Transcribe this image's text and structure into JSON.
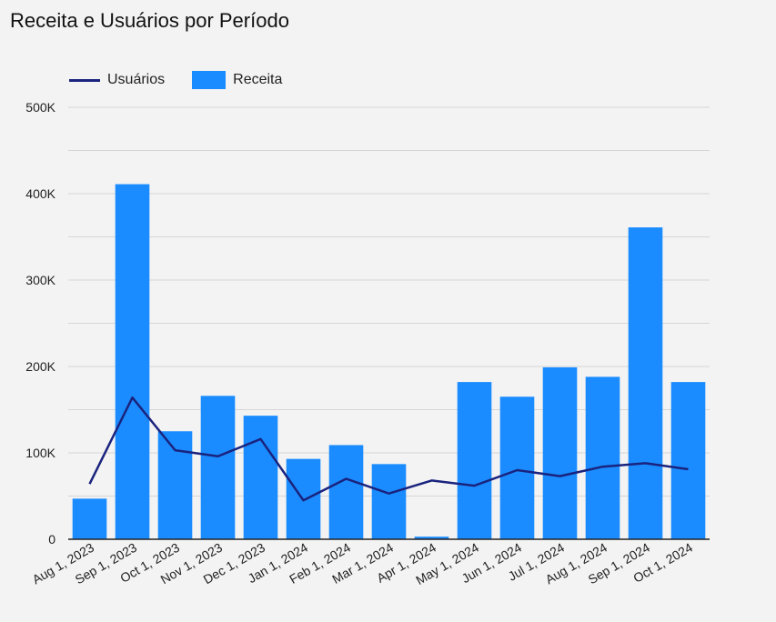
{
  "chart_data": {
    "type": "bar",
    "title": "Receita e Usuários por Período",
    "legend_position": "top-left",
    "grid": true,
    "ylim": [
      0,
      500000
    ],
    "y_ticks": [
      {
        "value": 0,
        "label": "0"
      },
      {
        "value": 100000,
        "label": "100K"
      },
      {
        "value": 200000,
        "label": "200K"
      },
      {
        "value": 300000,
        "label": "300K"
      },
      {
        "value": 400000,
        "label": "400K"
      },
      {
        "value": 500000,
        "label": "500K"
      }
    ],
    "categories": [
      "Aug 1, 2023",
      "Sep 1, 2023",
      "Oct 1, 2023",
      "Nov 1, 2023",
      "Dec 1, 2023",
      "Jan 1, 2024",
      "Feb 1, 2024",
      "Mar 1, 2024",
      "Apr 1, 2024",
      "May 1, 2024",
      "Jun 1, 2024",
      "Jul 1, 2024",
      "Aug 1, 2024",
      "Sep 1, 2024",
      "Oct 1, 2024"
    ],
    "series": [
      {
        "name": "Usuários",
        "kind": "line",
        "color": "#1a237e",
        "values": [
          64000,
          164000,
          103000,
          96000,
          116000,
          45000,
          70000,
          53000,
          68000,
          62000,
          80000,
          73000,
          84000,
          88000,
          81000
        ]
      },
      {
        "name": "Receita",
        "kind": "bar",
        "color": "#1a8cff",
        "values": [
          47000,
          411000,
          125000,
          166000,
          143000,
          93000,
          109000,
          87000,
          3000,
          182000,
          165000,
          199000,
          188000,
          361000,
          182000
        ]
      }
    ]
  }
}
